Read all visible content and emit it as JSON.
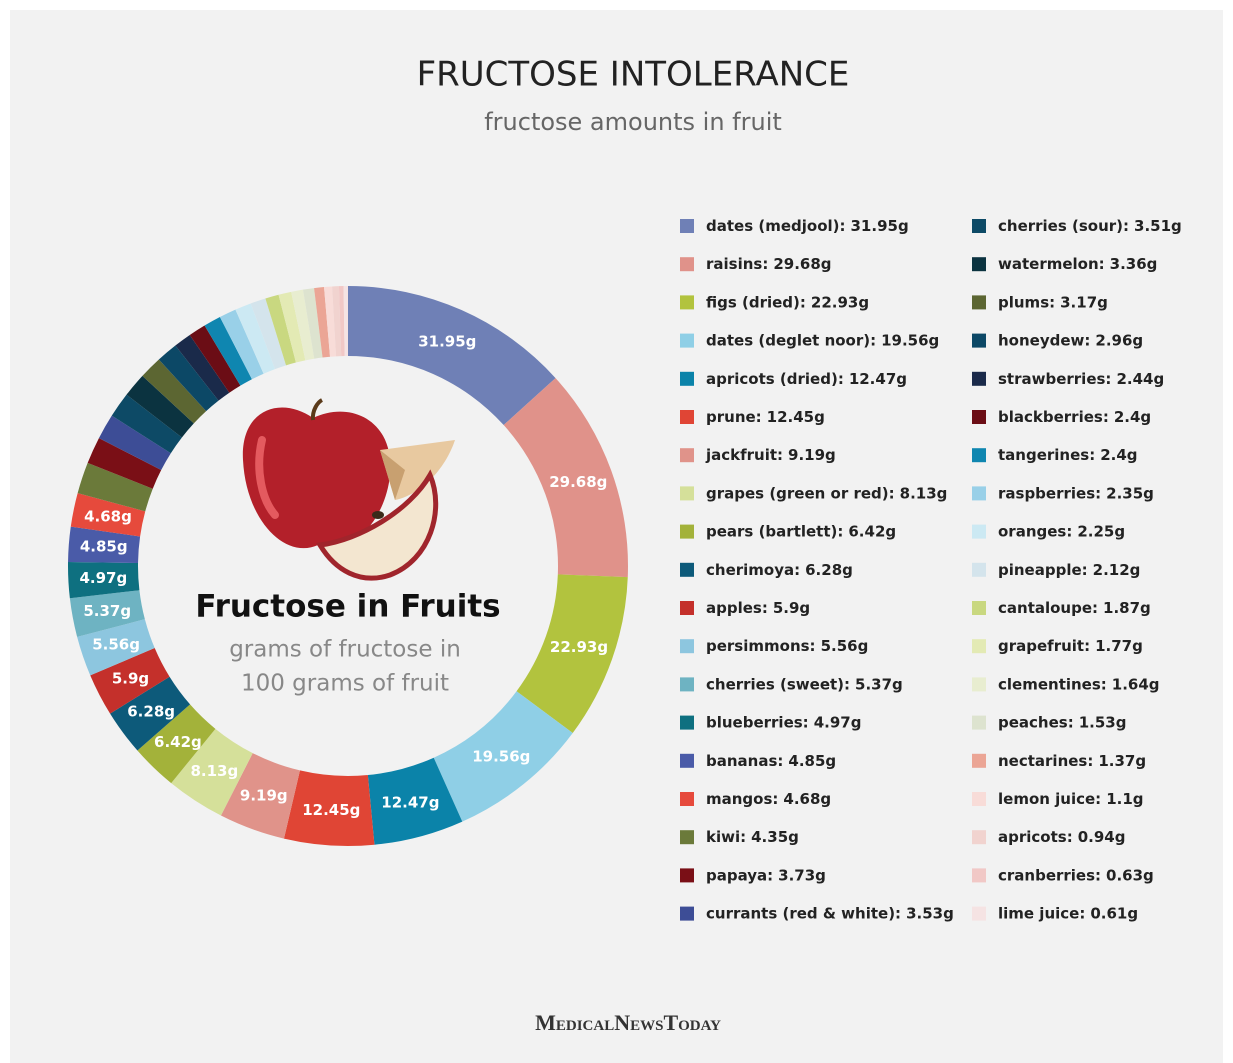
{
  "chart_data": {
    "type": "donut",
    "title": "FRUCTOSE INTOLERANCE",
    "subtitle": "fructose amounts in fruit",
    "center_title": "Fructose in Fruits",
    "center_subtitle": [
      "grams of fructose in",
      "100 grams of fruit"
    ],
    "footer": "MedicalNewsToday",
    "categories": [
      "dates (medjool):",
      "raisins:",
      "figs (dried):",
      "dates (deglet noor):",
      "apricots (dried):",
      "prune:",
      "jackfruit:",
      "grapes (green or red):",
      "pears (bartlett):",
      "cherimoya:",
      "apples:",
      "persimmons:",
      "cherries (sweet):",
      "blueberries:",
      "bananas:",
      "mangos:",
      "kiwi:",
      "papaya:",
      "currants (red & white):",
      "cherries (sour):",
      "watermelon:",
      "plums:",
      "honeydew:",
      "strawberries:",
      "blackberries:",
      "tangerines:",
      "raspberries:",
      "oranges:",
      "pineapple:",
      "cantaloupe:",
      "grapefruit:",
      "clementines:",
      "peaches:",
      "nectarines:",
      "lemon juice:",
      "apricots:",
      "cranberries:",
      "lime juice:"
    ],
    "values": [
      31.95,
      29.68,
      22.93,
      19.56,
      12.47,
      12.45,
      9.19,
      8.13,
      6.42,
      6.28,
      5.9,
      5.56,
      5.37,
      4.97,
      4.85,
      4.68,
      4.35,
      3.73,
      3.53,
      3.51,
      3.36,
      3.17,
      2.96,
      2.44,
      2.4,
      2.4,
      2.35,
      2.25,
      2.12,
      1.87,
      1.77,
      1.64,
      1.53,
      1.37,
      1.1,
      0.94,
      0.63,
      0.61
    ],
    "value_labels": [
      "31.95g",
      "29.68g",
      "22.93g",
      "19.56g",
      "12.47g",
      "12.45g",
      "9.19g",
      "8.13g",
      "6.42g",
      "6.28g",
      "5.9g",
      "5.56g",
      "5.37g",
      "4.97g",
      "4.85g",
      "4.68g",
      "4.35g",
      "3.73g",
      "3.53g",
      "3.51g",
      "3.36g",
      "3.17g",
      "2.96g",
      "2.44g",
      "2.4g",
      "2.4g",
      "2.35g",
      "2.25g",
      "2.12g",
      "1.87g",
      "1.77g",
      "1.64g",
      "1.53g",
      "1.37g",
      "1.1g",
      "0.94g",
      "0.63g",
      "0.61g"
    ],
    "colors": [
      "#6f80b6",
      "#e0928a",
      "#b2c33e",
      "#8fcfe6",
      "#0b83a9",
      "#e04535",
      "#e0938a",
      "#d5e09a",
      "#a3b23a",
      "#0d5a7a",
      "#c4302b",
      "#8dc6df",
      "#6eb3c2",
      "#0e7080",
      "#4a5ba8",
      "#e64a3c",
      "#6b7a3a",
      "#7a0f16",
      "#3d4d96",
      "#0d4a66",
      "#0b3340",
      "#5c6632",
      "#0c4866",
      "#1a2a4a",
      "#6b0d15",
      "#0f86b0",
      "#99d0e8",
      "#cce9f3",
      "#d4e4ec",
      "#c9d880",
      "#e3eab4",
      "#e8edd0",
      "#dde3cf",
      "#eba595",
      "#f8dcd8",
      "#f1d3cf",
      "#f1c8c6",
      "#f5e3e3"
    ]
  }
}
